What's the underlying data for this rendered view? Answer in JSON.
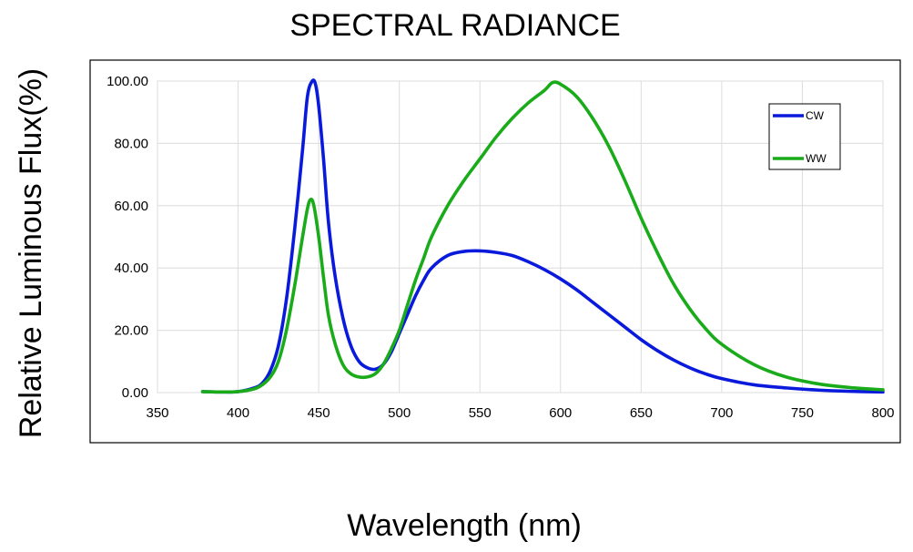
{
  "chart_data": {
    "type": "line",
    "title": "SPECTRAL RADIANCE",
    "xlabel": "Wavelength (nm)",
    "ylabel": "Relative Luminous Flux(%)",
    "xlim": [
      350,
      800
    ],
    "ylim": [
      0,
      100
    ],
    "x_ticks": [
      350,
      400,
      450,
      500,
      550,
      600,
      650,
      700,
      750,
      800
    ],
    "y_ticks": [
      0,
      20,
      40,
      60,
      80,
      100
    ],
    "y_tick_labels": [
      "0.00",
      "20.00",
      "40.00",
      "60.00",
      "80.00",
      "100.00"
    ],
    "grid": true,
    "legend_position": "top-right",
    "series": [
      {
        "name": "CW",
        "color": "#0a1adc",
        "x": [
          378,
          390,
          400,
          410,
          415,
          420,
          425,
          430,
          435,
          440,
          443,
          446,
          448,
          450,
          453,
          456,
          460,
          465,
          470,
          475,
          480,
          485,
          490,
          495,
          500,
          505,
          510,
          515,
          520,
          530,
          540,
          550,
          560,
          570,
          580,
          590,
          600,
          610,
          620,
          630,
          640,
          650,
          660,
          670,
          680,
          690,
          700,
          720,
          740,
          760,
          780,
          800
        ],
        "y": [
          0.3,
          0.2,
          0.3,
          1.5,
          3,
          7,
          15,
          30,
          52,
          78,
          95,
          100,
          99,
          92,
          75,
          55,
          38,
          24,
          15,
          10,
          8,
          7.5,
          9,
          13,
          19,
          25,
          31,
          36,
          40,
          44,
          45.3,
          45.5,
          45,
          44,
          42,
          39.5,
          36.5,
          33,
          29,
          25,
          21,
          17,
          13.5,
          10.5,
          8,
          6,
          4.5,
          2.5,
          1.5,
          0.8,
          0.4,
          0.2
        ]
      },
      {
        "name": "WW",
        "color": "#1aab1a",
        "x": [
          378,
          390,
          400,
          410,
          415,
          420,
          425,
          430,
          435,
          440,
          443,
          445,
          447,
          450,
          453,
          456,
          460,
          465,
          470,
          475,
          480,
          485,
          490,
          495,
          500,
          505,
          510,
          515,
          520,
          530,
          540,
          550,
          560,
          570,
          580,
          590,
          595,
          600,
          610,
          620,
          630,
          640,
          650,
          660,
          670,
          680,
          690,
          700,
          720,
          740,
          760,
          780,
          800
        ],
        "y": [
          0.3,
          0.2,
          0.3,
          1.2,
          2.5,
          5,
          10,
          20,
          34,
          50,
          59,
          62,
          60,
          50,
          37,
          25,
          16,
          9,
          6,
          5,
          5,
          6,
          9,
          14,
          20,
          28,
          36,
          43,
          50,
          60,
          68,
          75,
          82,
          88,
          93,
          97,
          99.5,
          99,
          95,
          88,
          79,
          68,
          56,
          45,
          35,
          27,
          20.5,
          15.5,
          9,
          5,
          2.8,
          1.6,
          0.9
        ]
      }
    ]
  }
}
